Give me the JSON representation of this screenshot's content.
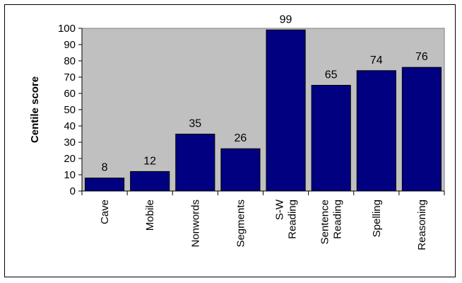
{
  "chart_data": {
    "type": "bar",
    "title": "",
    "xlabel": "",
    "ylabel": "Centile score",
    "ylim": [
      0,
      100
    ],
    "yticks": [
      0,
      10,
      20,
      30,
      40,
      50,
      60,
      70,
      80,
      90,
      100
    ],
    "categories": [
      [
        "Cave"
      ],
      [
        "Mobile"
      ],
      [
        "Nonwords"
      ],
      [
        "Segments"
      ],
      [
        "S-W",
        "Reading"
      ],
      [
        "Sentence",
        "Reading"
      ],
      [
        "Spelling"
      ],
      [
        "Reasoning"
      ]
    ],
    "values": [
      8,
      12,
      35,
      26,
      99,
      65,
      74,
      76
    ],
    "grid": false,
    "legend": "none",
    "colors": {
      "plot_background": "#c0c0c0",
      "bar_fill": "#000080",
      "bar_stroke": "#000000"
    }
  }
}
